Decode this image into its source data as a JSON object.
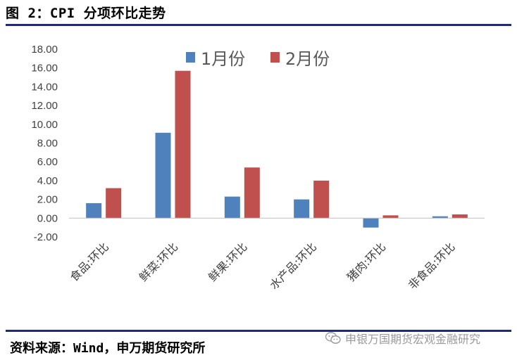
{
  "figure": {
    "title": "图 2：CPI 分项环比走势",
    "source": "资料来源：Wind，申万期货研究所",
    "watermark": "申银万国期货宏观金融研究"
  },
  "colors": {
    "series1": "#4f81bd",
    "series2": "#c0504d",
    "rule": "#1f2a7a"
  },
  "chart_data": {
    "type": "bar",
    "title": "",
    "xlabel": "",
    "ylabel": "",
    "categories": [
      "食品:环比",
      "鲜菜:环比",
      "鲜果:环比",
      "水产品:环比",
      "猪肉:环比",
      "非食品:环比"
    ],
    "series": [
      {
        "name": "1月份",
        "values": [
          1.6,
          9.1,
          2.3,
          2.0,
          -1.0,
          0.2
        ]
      },
      {
        "name": "2月份",
        "values": [
          3.2,
          15.7,
          5.4,
          4.0,
          0.3,
          0.4
        ]
      }
    ],
    "ylim": [
      -2,
      18
    ],
    "yticks": [
      "18.00",
      "16.00",
      "14.00",
      "12.00",
      "10.00",
      "8.00",
      "6.00",
      "4.00",
      "2.00",
      "0.00",
      "-2.00"
    ],
    "legend_position": "top",
    "grid": false
  }
}
